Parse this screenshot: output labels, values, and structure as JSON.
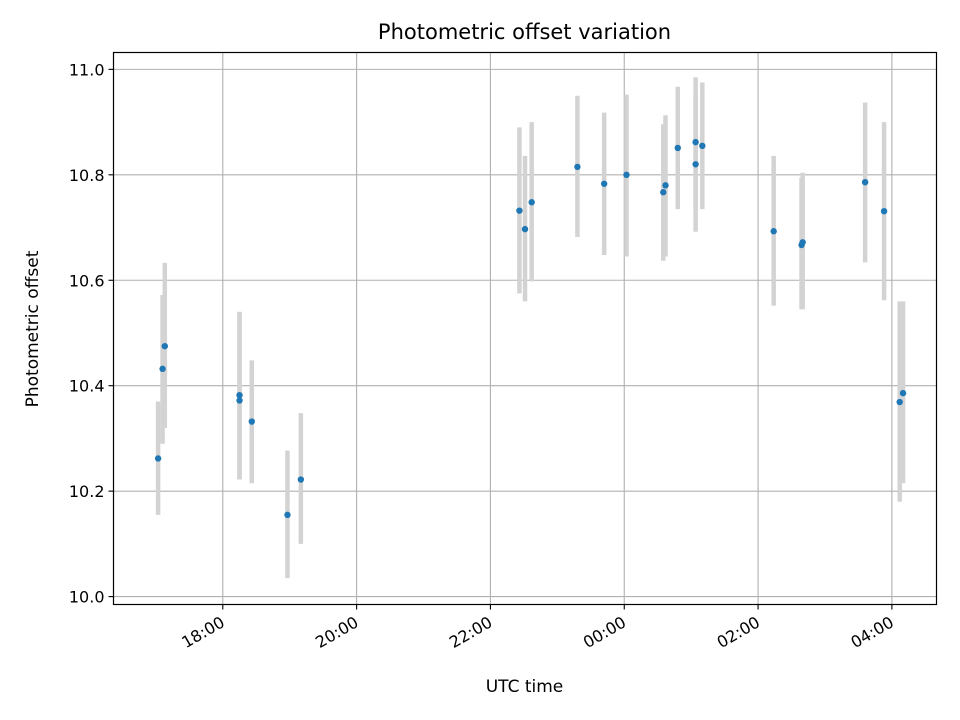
{
  "chart_data": {
    "type": "scatter",
    "title": "Photometric offset variation",
    "xlabel": "UTC time",
    "ylabel": "Photometric offset",
    "xlim": [
      "2024-01-01T16:22",
      "2024-01-02T04:40"
    ],
    "ylim": [
      9.985,
      11.032
    ],
    "x_ticks": [
      {
        "t": "2024-01-01T18:00",
        "label": "18:00"
      },
      {
        "t": "2024-01-01T20:00",
        "label": "20:00"
      },
      {
        "t": "2024-01-01T22:00",
        "label": "22:00"
      },
      {
        "t": "2024-01-02T00:00",
        "label": "00:00"
      },
      {
        "t": "2024-01-02T02:00",
        "label": "02:00"
      },
      {
        "t": "2024-01-02T04:00",
        "label": "04:00"
      }
    ],
    "y_ticks": [
      {
        "v": 10.0,
        "label": "10.0"
      },
      {
        "v": 10.2,
        "label": "10.2"
      },
      {
        "v": 10.4,
        "label": "10.4"
      },
      {
        "v": 10.6,
        "label": "10.6"
      },
      {
        "v": 10.8,
        "label": "10.8"
      },
      {
        "v": 11.0,
        "label": "11.0"
      }
    ],
    "grid": true,
    "colors": {
      "points": "#1f77b4",
      "errorbars": "#d3d3d3",
      "grid": "#b0b0b0"
    },
    "points": [
      {
        "t": "2024-01-01T17:02",
        "y": 10.262,
        "lo": 10.155,
        "hi": 10.37
      },
      {
        "t": "2024-01-01T17:06",
        "y": 10.432,
        "lo": 10.29,
        "hi": 10.572
      },
      {
        "t": "2024-01-01T17:08",
        "y": 10.475,
        "lo": 10.32,
        "hi": 10.633
      },
      {
        "t": "2024-01-01T18:15",
        "y": 10.382,
        "lo": 10.222,
        "hi": 10.54
      },
      {
        "t": "2024-01-01T18:15",
        "y": 10.372,
        "lo": 10.222,
        "hi": 10.54
      },
      {
        "t": "2024-01-01T18:26",
        "y": 10.332,
        "lo": 10.215,
        "hi": 10.448
      },
      {
        "t": "2024-01-01T18:58",
        "y": 10.155,
        "lo": 10.035,
        "hi": 10.277
      },
      {
        "t": "2024-01-01T19:10",
        "y": 10.222,
        "lo": 10.1,
        "hi": 10.348
      },
      {
        "t": "2024-01-01T22:26",
        "y": 10.732,
        "lo": 10.575,
        "hi": 10.89
      },
      {
        "t": "2024-01-01T22:31",
        "y": 10.697,
        "lo": 10.56,
        "hi": 10.836
      },
      {
        "t": "2024-01-01T22:37",
        "y": 10.748,
        "lo": 10.598,
        "hi": 10.9
      },
      {
        "t": "2024-01-01T23:18",
        "y": 10.815,
        "lo": 10.682,
        "hi": 10.95
      },
      {
        "t": "2024-01-01T23:42",
        "y": 10.783,
        "lo": 10.648,
        "hi": 10.918
      },
      {
        "t": "2024-01-02T00:02",
        "y": 10.8,
        "lo": 10.645,
        "hi": 10.952
      },
      {
        "t": "2024-01-02T00:35",
        "y": 10.767,
        "lo": 10.637,
        "hi": 10.896
      },
      {
        "t": "2024-01-02T00:37",
        "y": 10.78,
        "lo": 10.645,
        "hi": 10.913
      },
      {
        "t": "2024-01-02T00:48",
        "y": 10.851,
        "lo": 10.735,
        "hi": 10.967
      },
      {
        "t": "2024-01-02T01:04",
        "y": 10.862,
        "lo": 10.735,
        "hi": 10.985
      },
      {
        "t": "2024-01-02T01:04",
        "y": 10.82,
        "lo": 10.692,
        "hi": 10.95
      },
      {
        "t": "2024-01-02T01:10",
        "y": 10.855,
        "lo": 10.735,
        "hi": 10.975
      },
      {
        "t": "2024-01-02T02:14",
        "y": 10.693,
        "lo": 10.552,
        "hi": 10.836
      },
      {
        "t": "2024-01-02T02:39",
        "y": 10.667,
        "lo": 10.545,
        "hi": 10.795
      },
      {
        "t": "2024-01-02T02:40",
        "y": 10.672,
        "lo": 10.545,
        "hi": 10.804
      },
      {
        "t": "2024-01-02T03:36",
        "y": 10.786,
        "lo": 10.634,
        "hi": 10.937
      },
      {
        "t": "2024-01-02T03:53",
        "y": 10.731,
        "lo": 10.562,
        "hi": 10.9
      },
      {
        "t": "2024-01-02T04:07",
        "y": 10.369,
        "lo": 10.18,
        "hi": 10.56
      },
      {
        "t": "2024-01-02T04:10",
        "y": 10.386,
        "lo": 10.215,
        "hi": 10.56
      }
    ]
  }
}
